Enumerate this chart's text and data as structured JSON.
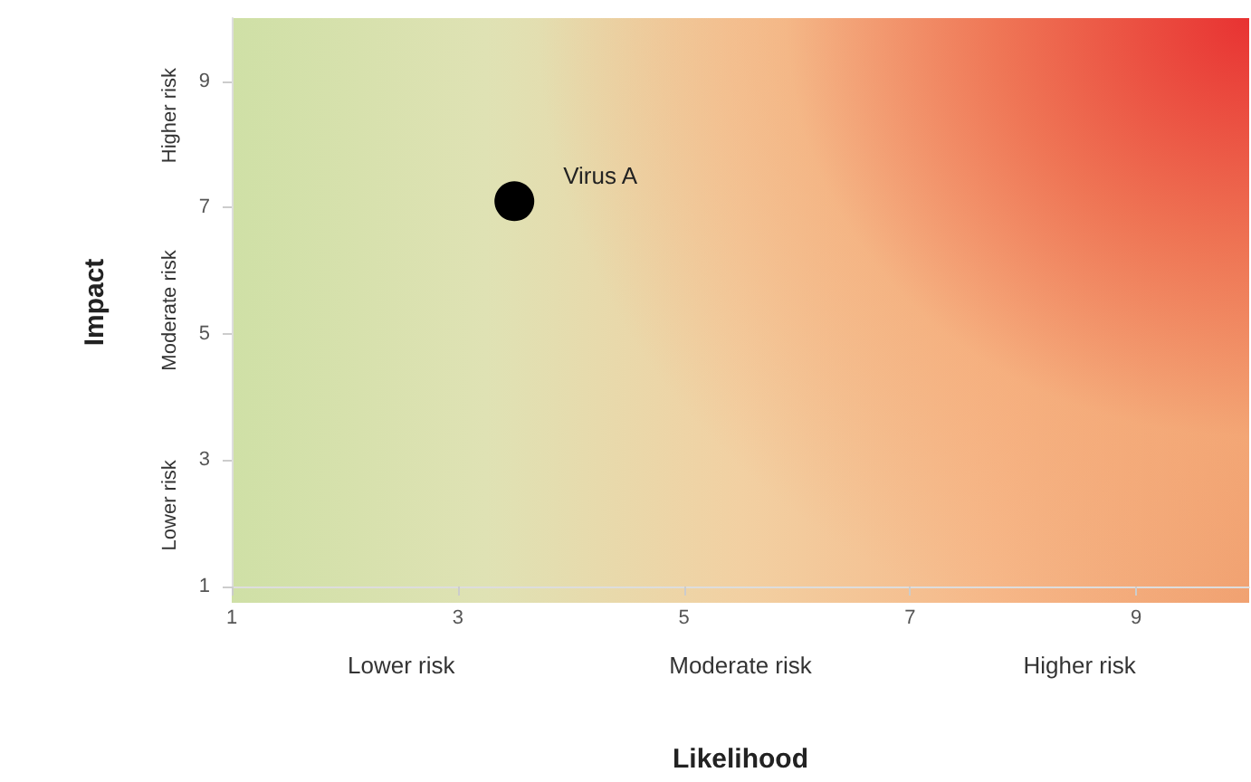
{
  "chart_data": {
    "type": "scatter",
    "xlabel": "Likelihood",
    "ylabel": "Impact",
    "series": [
      {
        "name": "Virus A",
        "color": "#000000",
        "x": [
          3.5
        ],
        "values": [
          7.1
        ]
      }
    ],
    "xlim": [
      1,
      10
    ],
    "xticks": [
      1,
      3,
      5,
      7,
      9
    ],
    "ylim": [
      1,
      10
    ],
    "yticks": [
      1,
      3,
      5,
      7,
      9
    ],
    "annotations": [
      "Lower risk",
      "Moderate risk",
      "Higher risk",
      "Lower risk",
      "Moderate risk",
      "Higher risk"
    ],
    "marker": "circle",
    "grid": false,
    "legend": false
  }
}
